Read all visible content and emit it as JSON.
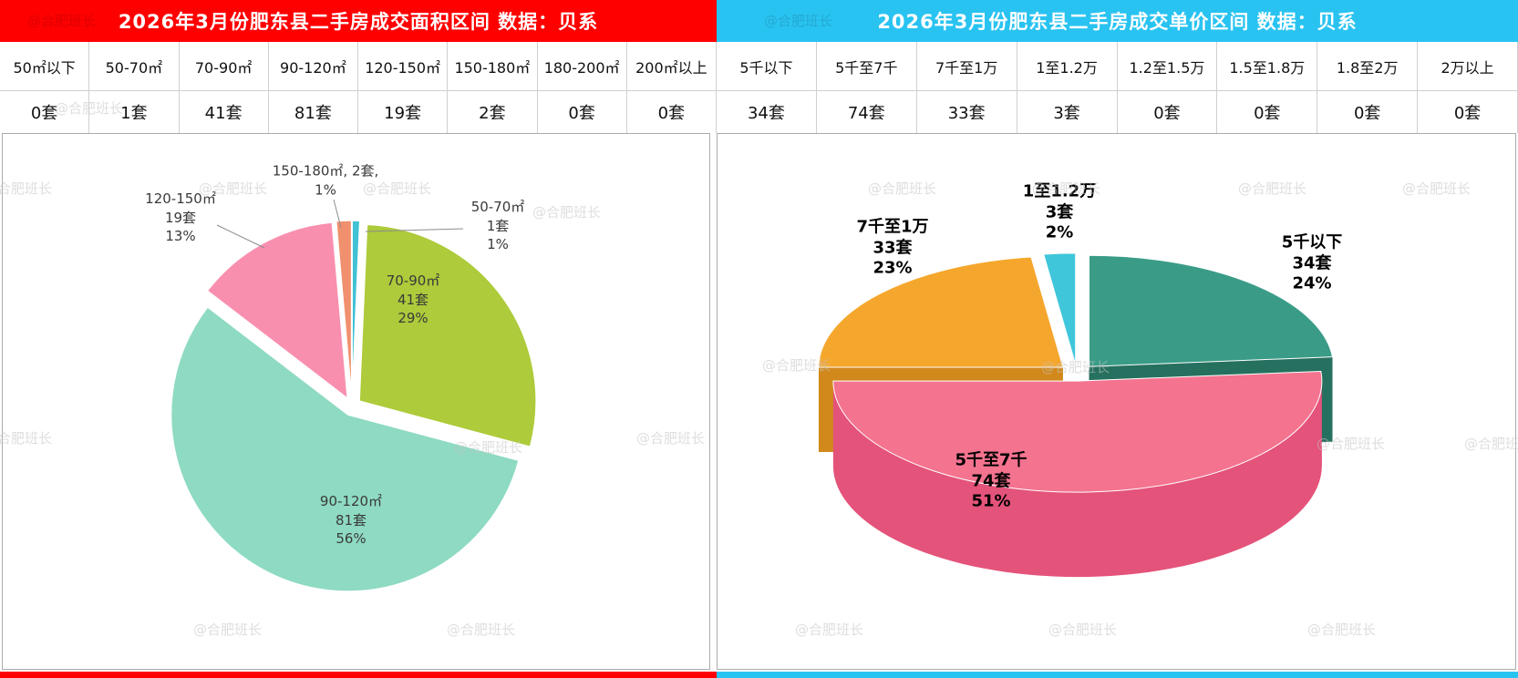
{
  "watermark": "@合肥班长",
  "left_panel": {
    "title": "2026年3月份肥东县二手房成交面积区间 数据：贝系",
    "accent_color": "#fe0000",
    "table": {
      "columns": [
        "50㎡以下",
        "50-70㎡",
        "70-90㎡",
        "90-120㎡",
        "120-150㎡",
        "150-180㎡",
        "180-200㎡",
        "200㎡以上"
      ],
      "values": [
        "0套",
        "1套",
        "41套",
        "81套",
        "19套",
        "2套",
        "0套",
        "0套"
      ]
    }
  },
  "right_panel": {
    "title": "2026年3月份肥东县二手房成交单价区间 数据：贝系",
    "accent_color": "#29c3f1",
    "table": {
      "columns": [
        "5千以下",
        "5千至7千",
        "7千至1万",
        "1至1.2万",
        "1.2至1.5万",
        "1.5至1.8万",
        "1.8至2万",
        "2万以上"
      ],
      "values": [
        "34套",
        "74套",
        "33套",
        "3套",
        "0套",
        "0套",
        "0套",
        "0套"
      ]
    }
  },
  "chart_data": [
    {
      "type": "pie",
      "title": "2026年3月份肥东县二手房成交面积区间",
      "unit": "套",
      "legend_position": "none",
      "categories": [
        "50㎡以下",
        "50-70㎡",
        "70-90㎡",
        "90-120㎡",
        "120-150㎡",
        "150-180㎡",
        "180-200㎡",
        "200㎡以上"
      ],
      "values": [
        0,
        1,
        41,
        81,
        19,
        2,
        0,
        0
      ],
      "slices": [
        {
          "name": "50-70㎡",
          "value": 1,
          "percent": "1%",
          "color": "#41c1d4"
        },
        {
          "name": "70-90㎡",
          "value": 41,
          "percent": "29%",
          "color": "#adcb3a"
        },
        {
          "name": "90-120㎡",
          "value": 81,
          "percent": "56%",
          "color": "#8edac2"
        },
        {
          "name": "120-150㎡",
          "value": 19,
          "percent": "13%",
          "color": "#f88fae"
        },
        {
          "name": "150-180㎡",
          "value": 2,
          "percent": "1%",
          "color": "#f0906e"
        }
      ],
      "labels": [
        {
          "lines": [
            "150-180㎡, 2套,",
            "1%"
          ],
          "placement": "outside"
        },
        {
          "lines": [
            "120-150㎡",
            "19套",
            "13%"
          ],
          "placement": "outside"
        },
        {
          "lines": [
            "50-70㎡",
            "1套",
            "1%"
          ],
          "placement": "outside"
        },
        {
          "lines": [
            "70-90㎡",
            "41套",
            "29%"
          ],
          "placement": "inside"
        },
        {
          "lines": [
            "90-120㎡",
            "81套",
            "56%"
          ],
          "placement": "inside"
        }
      ]
    },
    {
      "type": "pie3d",
      "title": "2026年3月份肥东县二手房成交单价区间",
      "unit": "套",
      "legend_position": "none",
      "categories": [
        "5千以下",
        "5千至7千",
        "7千至1万",
        "1至1.2万",
        "1.2至1.5万",
        "1.5至1.8万",
        "1.8至2万",
        "2万以上"
      ],
      "values": [
        34,
        74,
        33,
        3,
        0,
        0,
        0,
        0
      ],
      "slices": [
        {
          "name": "5千以下",
          "value": 34,
          "percent": "24%",
          "color": "#3a9c87",
          "dark": "#26705f"
        },
        {
          "name": "5千至7千",
          "value": 74,
          "percent": "51%",
          "color": "#f4738f",
          "dark": "#e4537a"
        },
        {
          "name": "7千至1万",
          "value": 33,
          "percent": "23%",
          "color": "#f5a72d",
          "dark": "#d2891c"
        },
        {
          "name": "1至1.2万",
          "value": 3,
          "percent": "2%",
          "color": "#3fc6da",
          "dark": "#2b9fb2"
        }
      ],
      "labels": [
        {
          "lines": [
            "1至1.2万",
            "3套",
            "2%"
          ]
        },
        {
          "lines": [
            "7千至1万",
            "33套",
            "23%"
          ]
        },
        {
          "lines": [
            "5千以下",
            "34套",
            "24%"
          ]
        },
        {
          "lines": [
            "5千至7千",
            "74套",
            "51%"
          ]
        }
      ]
    }
  ]
}
